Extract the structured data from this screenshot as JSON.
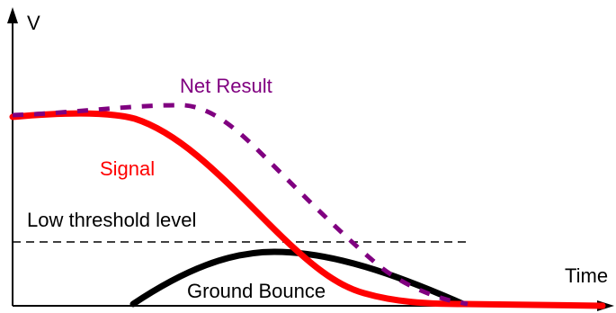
{
  "axes": {
    "y_label": "V",
    "x_label": "Time"
  },
  "labels": {
    "net_result": "Net Result",
    "signal": "Signal",
    "threshold": "Low threshold level",
    "ground_bounce": "Ground Bounce"
  },
  "colors": {
    "signal": "#ff0000",
    "net_result": "#800080",
    "ground_bounce": "#000000",
    "threshold": "#000000",
    "axes": "#000000"
  }
}
